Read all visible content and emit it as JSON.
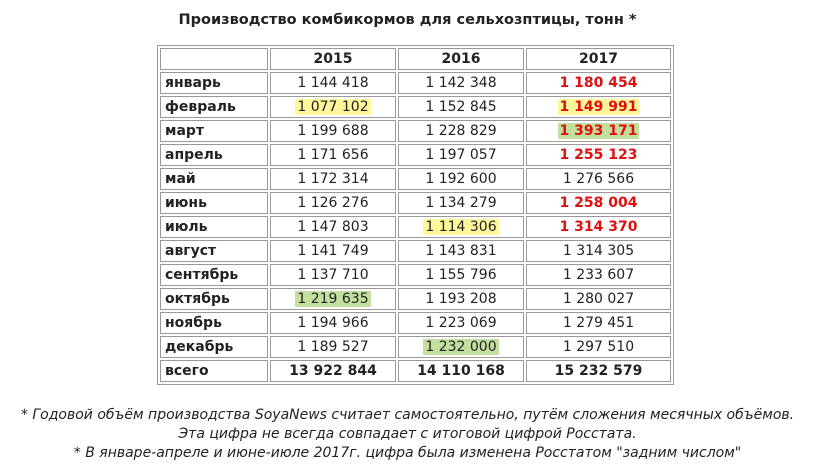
{
  "title": "Производство комбикормов для сельхозптицы, тонн *",
  "table": {
    "headers": [
      "",
      "2015",
      "2016",
      "2017"
    ],
    "rows": [
      {
        "month": "январь",
        "v": [
          "1 144 418",
          "1 142 348",
          "1 180 454"
        ],
        "style": [
          "",
          "",
          "red"
        ]
      },
      {
        "month": "февраль",
        "v": [
          "1 077 102",
          "1 152 845",
          "1 149 991"
        ],
        "style": [
          "yellow",
          "",
          "red-yellow"
        ]
      },
      {
        "month": "март",
        "v": [
          "1 199 688",
          "1 228 829",
          "1 393 171"
        ],
        "style": [
          "",
          "",
          "red-green"
        ]
      },
      {
        "month": "апрель",
        "v": [
          "1 171 656",
          "1 197 057",
          "1 255 123"
        ],
        "style": [
          "",
          "",
          "red"
        ]
      },
      {
        "month": "май",
        "v": [
          "1 172 314",
          "1 192 600",
          "1 276 566"
        ],
        "style": [
          "",
          "",
          ""
        ]
      },
      {
        "month": "июнь",
        "v": [
          "1 126 276",
          "1 134 279",
          "1 258 004"
        ],
        "style": [
          "",
          "",
          "red"
        ]
      },
      {
        "month": "июль",
        "v": [
          "1 147 803",
          "1 114 306",
          "1 314 370"
        ],
        "style": [
          "",
          "yellow",
          "red"
        ]
      },
      {
        "month": "август",
        "v": [
          "1 141 749",
          "1 143 831",
          "1 314 305"
        ],
        "style": [
          "",
          "",
          ""
        ]
      },
      {
        "month": "сентябрь",
        "v": [
          "1 137 710",
          "1 155 796",
          "1 233 607"
        ],
        "style": [
          "",
          "",
          ""
        ]
      },
      {
        "month": "октябрь",
        "v": [
          "1 219 635",
          "1 193 208",
          "1 280 027"
        ],
        "style": [
          "green",
          "",
          ""
        ]
      },
      {
        "month": "ноябрь",
        "v": [
          "1 194 966",
          "1 223 069",
          "1 279 451"
        ],
        "style": [
          "",
          "",
          ""
        ]
      },
      {
        "month": "декабрь",
        "v": [
          "1 189 527",
          "1 232 000",
          "1 297 510"
        ],
        "style": [
          "",
          "green",
          ""
        ]
      }
    ],
    "total": {
      "label": "всего",
      "v": [
        "13 922 844",
        "14 110 168",
        "15 232 579"
      ]
    }
  },
  "notes": [
    "* Годовой объём производства SoyaNews считает самостоятельно, путём сложения месячных объёмов.",
    "Эта цифра не всегда совпадает с итоговой цифрой Росстата.",
    "* В январе-апреле и июне-июле 2017г. цифра была изменена Росстатом \"задним числом\""
  ],
  "colors": {
    "red": "#e01010",
    "highlight_yellow": "#fff79a",
    "highlight_green": "#c3df9d"
  }
}
